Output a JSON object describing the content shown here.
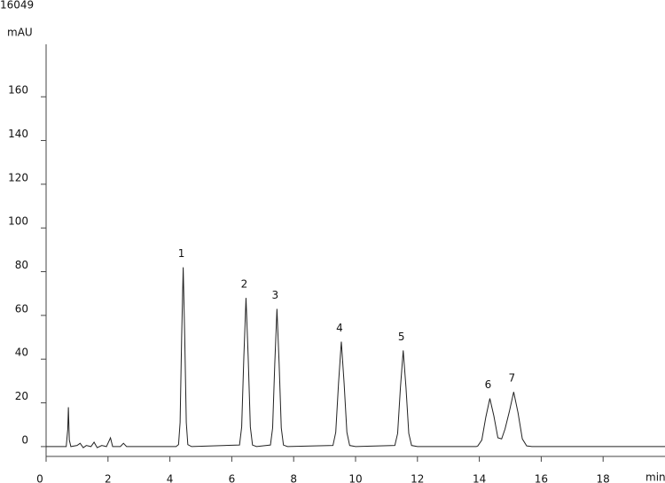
{
  "chart_data": {
    "type": "line",
    "top_label": "16049",
    "y_label": "mAU",
    "x_label": "min",
    "color": "#222222",
    "x": [
      0,
      0.65,
      0.7,
      0.72,
      0.75,
      0.8,
      1.0,
      1.1,
      1.2,
      1.3,
      1.45,
      1.55,
      1.65,
      1.8,
      1.95,
      2.08,
      2.15,
      2.4,
      2.5,
      2.6,
      4.2,
      4.28,
      4.33,
      4.38,
      4.43,
      4.48,
      4.53,
      4.58,
      4.7,
      6.25,
      6.32,
      6.39,
      6.46,
      6.53,
      6.6,
      6.67,
      6.8,
      7.25,
      7.32,
      7.39,
      7.46,
      7.53,
      7.6,
      7.67,
      7.8,
      9.27,
      9.36,
      9.45,
      9.54,
      9.63,
      9.72,
      9.81,
      10.0,
      11.27,
      11.36,
      11.45,
      11.54,
      11.63,
      11.72,
      11.81,
      12.0,
      13.9,
      13.95,
      14.08,
      14.21,
      14.34,
      14.47,
      14.6,
      14.72,
      14.83,
      14.97,
      15.11,
      15.25,
      15.39,
      15.53,
      15.7,
      20
    ],
    "values": [
      0,
      0,
      8,
      18,
      3,
      0,
      0.5,
      1.5,
      -0.5,
      0.5,
      0,
      2,
      -0.5,
      0.5,
      0,
      4,
      0,
      0,
      1.5,
      0,
      0,
      0.9,
      11,
      50,
      82,
      50,
      11,
      0.9,
      0,
      0.7,
      9,
      41,
      68,
      41,
      9,
      0.7,
      0,
      0.7,
      8.5,
      38,
      63,
      38,
      8.5,
      0.7,
      0,
      0.5,
      6.5,
      29,
      48,
      29,
      6.5,
      0.5,
      0,
      0.5,
      6,
      27,
      44,
      27,
      6,
      0.5,
      0,
      0,
      0.3,
      3,
      13.5,
      22,
      14,
      4,
      3.5,
      8,
      16,
      25,
      15.5,
      3.5,
      0.3,
      0,
      0
    ],
    "annotations": [
      {
        "text": "1",
        "x": 4.43
      },
      {
        "text": "2",
        "x": 6.46
      },
      {
        "text": "3",
        "x": 7.46
      },
      {
        "text": "4",
        "x": 9.54
      },
      {
        "text": "5",
        "x": 11.54
      },
      {
        "text": "6",
        "x": 14.34
      },
      {
        "text": "7",
        "x": 15.11
      }
    ],
    "xlim": [
      0,
      20
    ],
    "ylim": [
      -4.5,
      184
    ],
    "xticks": [
      0,
      2,
      4,
      6,
      8,
      10,
      12,
      14,
      16,
      18
    ],
    "yticks": [
      0,
      20,
      40,
      60,
      80,
      100,
      120,
      140,
      160
    ]
  }
}
